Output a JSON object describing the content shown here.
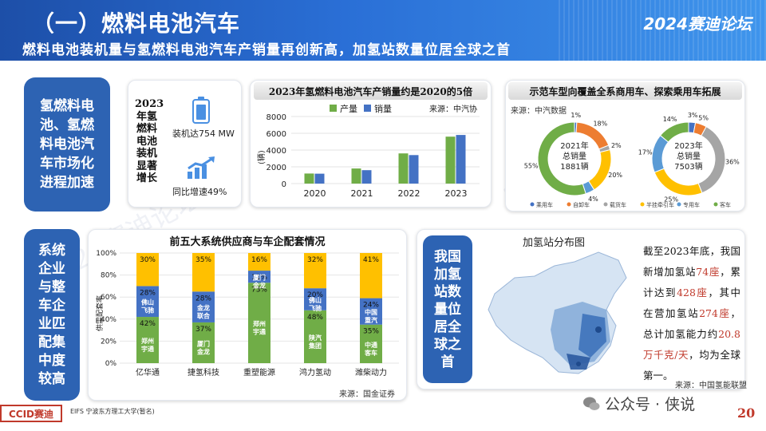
{
  "header": {
    "title": "（一）燃料电池汽车",
    "brand": "2024赛迪论坛",
    "subtitle": "燃料电池装机量与氢燃料电池汽车产销量再创新高，加氢站数量位居全球之首"
  },
  "left_pills": [
    {
      "text": "氢燃料电池、氢燃料电池汽车市场化进程加速"
    },
    {
      "text": "系统企业与整车企业匹配集中度较高"
    }
  ],
  "install_panel": {
    "vertical_label": "2023年氢燃料电池装机显著增长",
    "stat1": "装机达754 MW",
    "stat2": "同比增速49%"
  },
  "chart_prod": {
    "title": "2023年氢燃料电池汽车产销量约是2020的5倍",
    "source": "来源：中汽协",
    "legend": [
      "产量",
      "销量"
    ],
    "ylabel": "(辆)"
  },
  "chart_donut": {
    "title": "示范车型向覆盖全系商用车、探索乘用车拓展",
    "source": "来源：中汽数据",
    "center_2021": [
      "2021年",
      "总销量",
      "1881辆"
    ],
    "center_2023": [
      "2023年",
      "总销量",
      "7503辆"
    ],
    "legend": [
      "乘用车",
      "自卸车",
      "载货车",
      "半挂牵引车",
      "专用车",
      "客车"
    ]
  },
  "chart_supply": {
    "title": "前五大系统供应商与车企配套情况",
    "ylabel": "供需配套率",
    "source": "来源：国金证券"
  },
  "map_panel": {
    "pill": "我国加氢站数量位居全球之首",
    "map_title": "加氢站分布图",
    "text_parts": [
      "截至2023年底，我国新增加氢站",
      "74座",
      "，累计达到",
      "428座",
      "，其中在营加氢站",
      "274座",
      "，总计加氢能力约",
      "20.8万千克/天",
      "，均为全球第一。"
    ],
    "source": "来源：中国氢能联盟"
  },
  "footer": {
    "logo1": "CCID赛迪",
    "logo2": "EIFS 宁波东方理工大学(暂名)",
    "wechat": "公众号 · 侠说",
    "page": "20"
  },
  "watermark": "2024赛迪论坛",
  "colors": {
    "blue": "#4472c4",
    "green": "#70ad47",
    "orange": "#ed7d31",
    "yellow": "#ffc000",
    "gray": "#a5a5a5",
    "pill": "#2d63b3"
  },
  "chart_data": [
    {
      "type": "bar",
      "title": "2023年氢燃料电池汽车产销量约是2020的5倍",
      "categories": [
        "2020",
        "2021",
        "2022",
        "2023"
      ],
      "series": [
        {
          "name": "产量",
          "values": [
            1200,
            1800,
            3600,
            5600
          ]
        },
        {
          "name": "销量",
          "values": [
            1180,
            1600,
            3400,
            5800
          ]
        }
      ],
      "ylabel": "(辆)",
      "yticks": [
        0,
        2000,
        4000,
        6000,
        8000
      ],
      "ylim": [
        0,
        8000
      ]
    },
    {
      "type": "pie",
      "title": "2021年总销量1881辆",
      "labels": [
        "乘用车",
        "自卸车",
        "载货车",
        "半挂牵引车",
        "专用车",
        "客车"
      ],
      "values": [
        1,
        18,
        2,
        20,
        4,
        55
      ],
      "colors": [
        "#4472c4",
        "#ed7d31",
        "#a5a5a5",
        "#ffc000",
        "#5b9bd5",
        "#70ad47"
      ]
    },
    {
      "type": "pie",
      "title": "2023年总销量7503辆",
      "labels": [
        "乘用车",
        "自卸车",
        "载货车",
        "半挂牵引车",
        "专用车",
        "客车"
      ],
      "values": [
        3,
        5,
        36,
        25,
        17,
        14
      ],
      "colors": [
        "#4472c4",
        "#ed7d31",
        "#a5a5a5",
        "#ffc000",
        "#5b9bd5",
        "#70ad47"
      ]
    },
    {
      "type": "bar",
      "stacked": true,
      "title": "前五大系统供应商与车企配套情况",
      "categories": [
        "亿华通",
        "捷氢科技",
        "重塑能源",
        "鸿力氢动",
        "潍柴动力"
      ],
      "yticks": [
        "0%",
        "20%",
        "40%",
        "60%",
        "80%",
        "100%"
      ],
      "series": [
        {
          "name": "bottom",
          "values": [
            42,
            37,
            73,
            48,
            35
          ],
          "labels": [
            "郑州宇通",
            "厦门金龙",
            "郑州宇通",
            "陕汽集团",
            "中通客车"
          ]
        },
        {
          "name": "middle",
          "values": [
            28,
            28,
            11,
            20,
            24
          ],
          "labels": [
            "佛山飞驰",
            "金龙联合",
            "厦门金龙",
            "佛山飞驰",
            "中国重汽"
          ]
        },
        {
          "name": "top",
          "values": [
            30,
            35,
            16,
            32,
            41
          ],
          "labels": [
            "",
            "",
            "",
            "",
            ""
          ]
        }
      ]
    }
  ]
}
